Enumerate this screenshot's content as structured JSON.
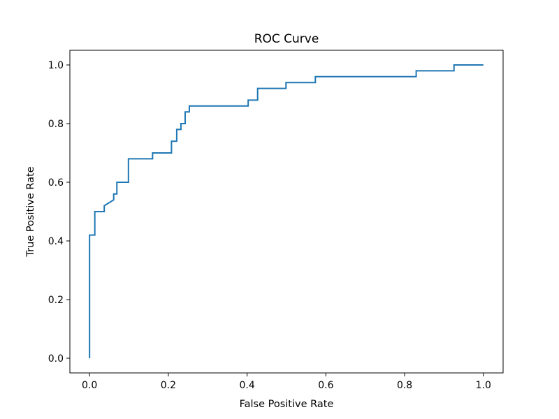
{
  "chart_data": {
    "type": "line",
    "title": "ROC Curve",
    "xlabel": "False Positive Rate",
    "ylabel": "True Positive Rate",
    "xlim": [
      -0.05,
      1.05
    ],
    "ylim": [
      -0.05,
      1.05
    ],
    "xticks": [
      "0.0",
      "0.2",
      "0.4",
      "0.6",
      "0.8",
      "1.0"
    ],
    "yticks": [
      "0.0",
      "0.2",
      "0.4",
      "0.6",
      "0.8",
      "1.0"
    ],
    "grid": false,
    "line_color": "#1f77b4",
    "series": [
      {
        "x": [
          0.0,
          0.0,
          0.0133,
          0.0133,
          0.0373,
          0.0373,
          0.0613,
          0.0613,
          0.0693,
          0.0693,
          0.0987,
          0.0987,
          0.16,
          0.16,
          0.208,
          0.208,
          0.2213,
          0.2213,
          0.232,
          0.232,
          0.2427,
          0.2427,
          0.2533,
          0.2533,
          0.4027,
          0.4027,
          0.4267,
          0.4267,
          0.4987,
          0.4987,
          0.5733,
          0.5733,
          0.8293,
          0.8293,
          0.9253,
          0.9253,
          1.0
        ],
        "y": [
          0.0,
          0.42,
          0.42,
          0.5,
          0.5,
          0.52,
          0.54,
          0.56,
          0.56,
          0.6,
          0.6,
          0.68,
          0.68,
          0.7,
          0.7,
          0.74,
          0.74,
          0.78,
          0.78,
          0.8,
          0.8,
          0.84,
          0.84,
          0.86,
          0.86,
          0.88,
          0.88,
          0.92,
          0.92,
          0.94,
          0.94,
          0.96,
          0.96,
          0.98,
          0.98,
          1.0,
          1.0
        ]
      }
    ]
  }
}
